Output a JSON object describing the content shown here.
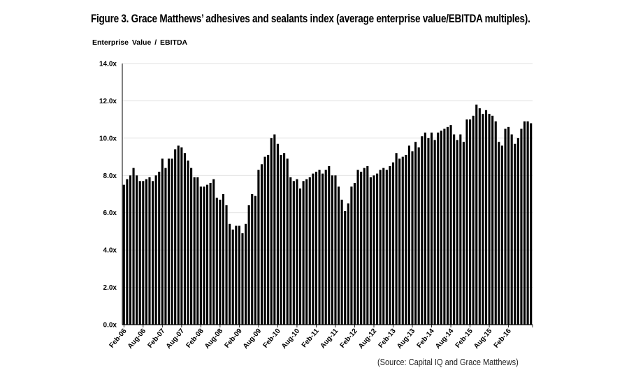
{
  "figure": {
    "title": "Figure 3. Grace Matthews’ adhesives and sealants index (average enterprise value/EBITDA multiples).",
    "source": "(Source: Capital IQ and Grace Matthews)"
  },
  "chart_data": {
    "type": "bar",
    "title": "Figure 3. Grace Matthews’ adhesives and sealants index (average enterprise value/EBITDA multiples).",
    "xlabel": "",
    "ylabel": "Enterprise  Value / EBITDA",
    "ylim": [
      0,
      14
    ],
    "ytick_values": [
      0,
      2,
      4,
      6,
      8,
      10,
      12,
      14
    ],
    "ytick_labels": [
      "0.0x",
      "2.0x",
      "4.0x",
      "6.0x",
      "8.0x",
      "10.0x",
      "12.0x",
      "14.0x"
    ],
    "grid": true,
    "bar_color": "#000000",
    "xtick_labels": [
      "Feb-06",
      "Aug-06",
      "Feb-07",
      "Aug-07",
      "Feb-08",
      "Aug-08",
      "Feb-09",
      "Aug-09",
      "Feb-10",
      "Aug-10",
      "Feb-11",
      "Aug-11",
      "Feb-12",
      "Aug-12",
      "Feb-13",
      "Aug-13",
      "Feb-14",
      "Aug-14",
      "Feb-15",
      "Aug-15",
      "Feb-16"
    ],
    "xtick_period_months": 6,
    "first_period": "Feb-06",
    "last_period": "Jun-16",
    "series": [
      {
        "name": "Enterprise Value / EBITDA",
        "values": [
          7.5,
          7.8,
          8.0,
          8.4,
          8.0,
          7.7,
          7.7,
          7.8,
          7.9,
          7.7,
          8.0,
          8.2,
          8.9,
          8.4,
          8.9,
          8.9,
          9.4,
          9.6,
          9.5,
          9.2,
          8.8,
          8.4,
          7.9,
          7.9,
          7.4,
          7.4,
          7.5,
          7.6,
          7.8,
          6.8,
          6.7,
          7.0,
          6.4,
          5.4,
          5.1,
          5.3,
          5.3,
          4.9,
          5.4,
          6.4,
          7.0,
          6.9,
          8.3,
          8.6,
          9.0,
          9.1,
          10.0,
          10.2,
          9.7,
          9.1,
          9.2,
          8.9,
          7.9,
          7.7,
          7.8,
          7.3,
          7.7,
          7.8,
          7.9,
          8.1,
          8.2,
          8.3,
          8.1,
          8.3,
          8.5,
          8.0,
          8.0,
          7.4,
          6.7,
          6.1,
          6.5,
          7.4,
          7.6,
          8.3,
          8.2,
          8.4,
          8.5,
          7.9,
          8.0,
          8.1,
          8.3,
          8.4,
          8.3,
          8.5,
          8.7,
          9.2,
          8.9,
          9.0,
          9.1,
          9.6,
          9.3,
          9.8,
          9.5,
          10.1,
          10.3,
          10.0,
          10.3,
          9.9,
          10.3,
          10.4,
          10.5,
          10.6,
          10.7,
          10.2,
          9.9,
          10.2,
          9.8,
          11.0,
          11.0,
          11.2,
          11.8,
          11.6,
          11.3,
          11.5,
          11.3,
          11.2,
          10.9,
          9.8,
          9.6,
          10.5,
          10.6,
          10.2,
          9.7,
          10.0,
          10.5,
          10.9,
          10.9,
          10.8
        ]
      }
    ]
  }
}
